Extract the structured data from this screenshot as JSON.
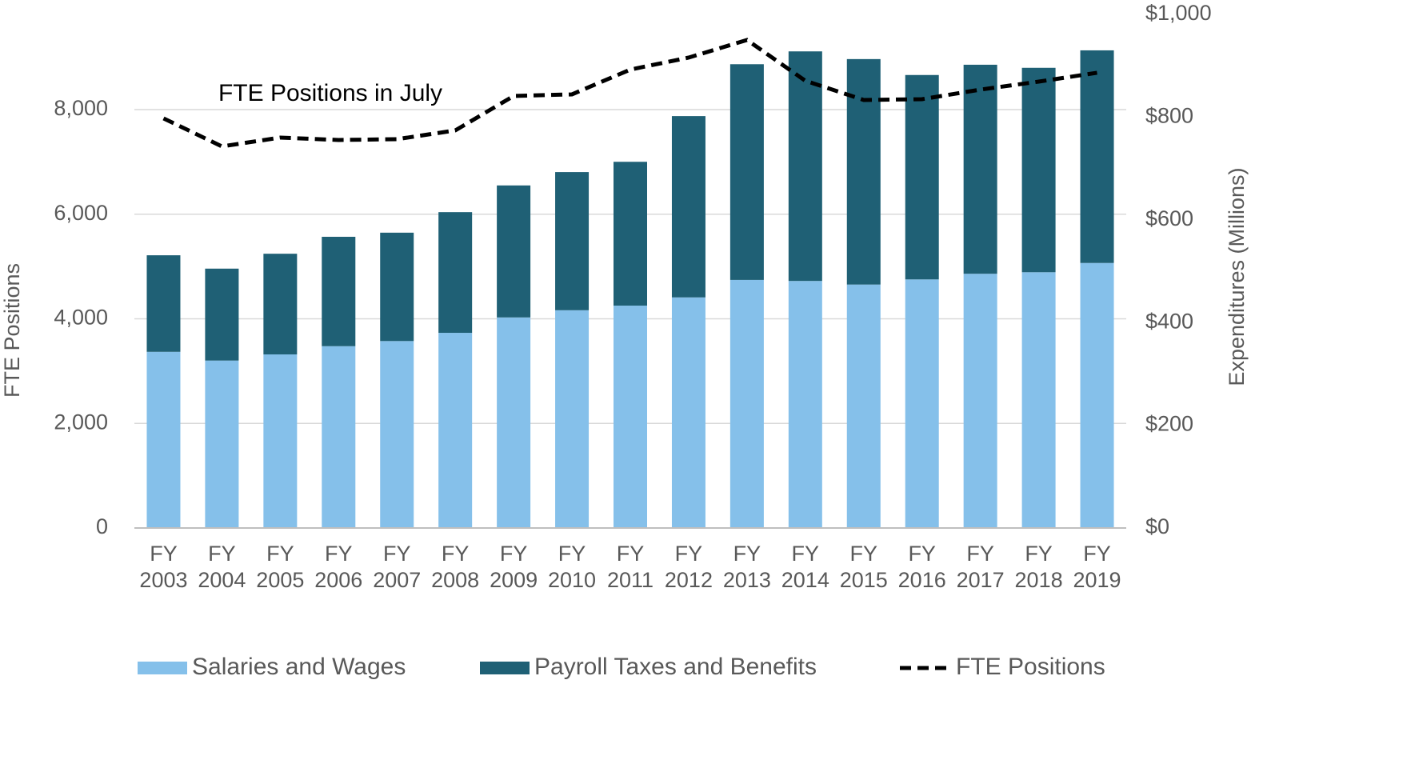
{
  "chart_data": {
    "type": "bar_line",
    "annotation": "FTE Positions in July",
    "y_label": "FTE Positions",
    "y2_label": "Expenditures (Millions)",
    "categories": [
      "FY 2003",
      "FY 2004",
      "FY 2005",
      "FY 2006",
      "FY 2007",
      "FY 2008",
      "FY 2009",
      "FY 2010",
      "FY 2011",
      "FY 2012",
      "FY 2013",
      "FY 2014",
      "FY 2015",
      "FY 2016",
      "FY 2017",
      "FY 2018",
      "FY 2019"
    ],
    "series": [
      {
        "name": "Salaries and Wages",
        "color": "#85c0ea",
        "type": "bar",
        "axis": "y2",
        "values": [
          343,
          326,
          338,
          354,
          364,
          380,
          410,
          424,
          433,
          449,
          483,
          481,
          474,
          484,
          495,
          498,
          516
        ]
      },
      {
        "name": "Payroll Taxes and Benefits",
        "color": "#1f6075",
        "type": "bar",
        "axis": "y2",
        "values": [
          188,
          179,
          196,
          213,
          211,
          235,
          257,
          269,
          280,
          353,
          420,
          447,
          439,
          398,
          407,
          398,
          414
        ]
      },
      {
        "name": "FTE Positions",
        "color": "#000000",
        "type": "line",
        "dashed": true,
        "values": [
          7832,
          7296,
          7465,
          7419,
          7434,
          7602,
          8260,
          8291,
          8765,
          8994,
          9331,
          8551,
          8184,
          8199,
          8382,
          8535,
          8704
        ]
      }
    ],
    "stacked": true,
    "ylim": [
      0,
      9820
    ],
    "yticks": [
      0,
      {
        "value": 2000,
        "label": "2,000"
      },
      {
        "value": 4000,
        "label": "4,000"
      },
      {
        "value": 6000,
        "label": "6,000"
      },
      {
        "value": 8000,
        "label": "8,000"
      }
    ],
    "y2lim": [
      0,
      1000
    ],
    "y2ticks": [
      {
        "value": 0,
        "label": "$0"
      },
      {
        "value": 200,
        "label": "$200"
      },
      {
        "value": 400,
        "label": "$400"
      },
      {
        "value": 600,
        "label": "$600"
      },
      {
        "value": 800,
        "label": "$800"
      },
      {
        "value": 1000,
        "label": "$1,000"
      }
    ],
    "grid": true,
    "legend": "bottom"
  }
}
